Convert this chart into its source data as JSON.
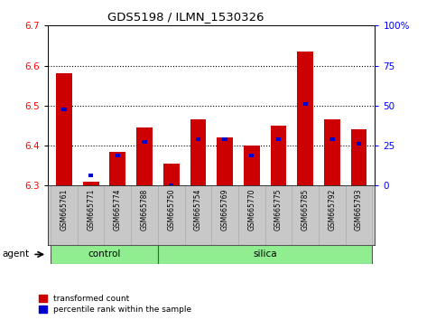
{
  "title": "GDS5198 / ILMN_1530326",
  "samples": [
    "GSM665761",
    "GSM665771",
    "GSM665774",
    "GSM665788",
    "GSM665750",
    "GSM665754",
    "GSM665769",
    "GSM665770",
    "GSM665775",
    "GSM665785",
    "GSM665792",
    "GSM665793"
  ],
  "groups": [
    "control",
    "control",
    "control",
    "control",
    "silica",
    "silica",
    "silica",
    "silica",
    "silica",
    "silica",
    "silica",
    "silica"
  ],
  "red_values": [
    6.58,
    6.31,
    6.385,
    6.445,
    6.355,
    6.465,
    6.42,
    6.4,
    6.45,
    6.635,
    6.465,
    6.44
  ],
  "blue_values": [
    6.49,
    6.325,
    6.375,
    6.41,
    6.3,
    6.415,
    6.415,
    6.375,
    6.415,
    6.505,
    6.415,
    6.405
  ],
  "ylim_left": [
    6.3,
    6.7
  ],
  "ylim_right": [
    0,
    100
  ],
  "yticks_left": [
    6.3,
    6.4,
    6.5,
    6.6,
    6.7
  ],
  "yticks_right": [
    0,
    25,
    50,
    75,
    100
  ],
  "ytick_labels_right": [
    "0",
    "25",
    "50",
    "75",
    "100%"
  ],
  "base": 6.3,
  "bar_color_red": "#CC0000",
  "bar_color_blue": "#0000CC",
  "plot_bg": "#FFFFFF",
  "green_color": "#90EE90",
  "gray_color": "#C8C8C8",
  "agent_label": "agent",
  "legend_red": "transformed count",
  "legend_blue": "percentile rank within the sample",
  "grid_lines": [
    6.4,
    6.5,
    6.6
  ],
  "control_count": 4,
  "silica_count": 8
}
